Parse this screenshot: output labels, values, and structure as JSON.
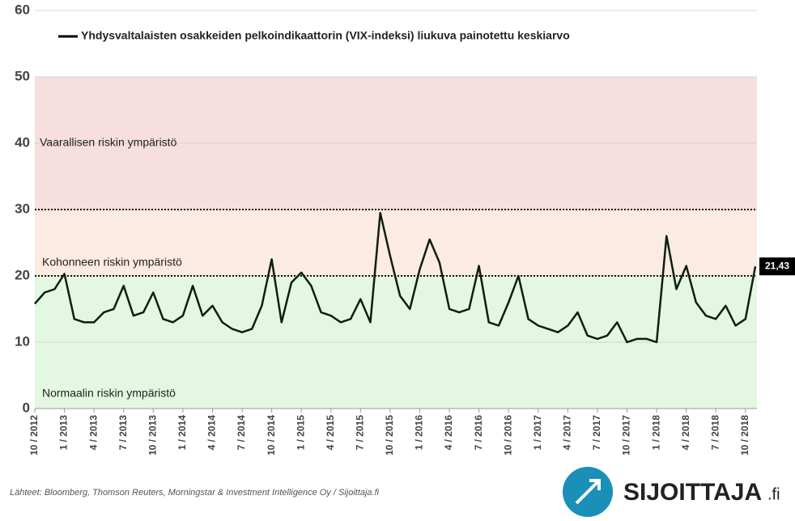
{
  "chart_data": {
    "type": "line",
    "legend": "Yhdysvaltalaisten osakkeiden pelkoindikaattorin (VIX-indeksi) liukuva painotettu keskiarvo",
    "source": "Lähteet: Bloomberg, Thomson Reuters, Morningstar & Investment Intelligence Oy / Sijoittaja.fi",
    "logo": {
      "name": "SIJOITTAJA",
      "suffix": ".fi"
    },
    "zones": [
      {
        "label": "Normaalin riskin ympäristö",
        "from": 0,
        "to": 20,
        "color": "#e3f7e1"
      },
      {
        "label": "Kohonneen riskin ympäristö",
        "from": 20,
        "to": 30,
        "color": "#fbebe3"
      },
      {
        "label": "Vaarallisen riskin ympäristö",
        "from": 30,
        "to": 50,
        "color": "#f7dfdf"
      }
    ],
    "thresholds": [
      20,
      30
    ],
    "categories": [
      "10 / 2012",
      null,
      null,
      "1 / 2013",
      null,
      null,
      "4 / 2013",
      null,
      null,
      "7 / 2013",
      null,
      null,
      "10 / 2013",
      null,
      null,
      "1 / 2014",
      null,
      null,
      "4 / 2014",
      null,
      null,
      "7 / 2014",
      null,
      null,
      "10 / 2014",
      null,
      null,
      "1 / 2015",
      null,
      null,
      "4 / 2015",
      null,
      null,
      "7 / 2015",
      null,
      null,
      "10 / 2015",
      null,
      null,
      "1 / 2016",
      null,
      null,
      "4 / 2016",
      null,
      null,
      "7 / 2016",
      null,
      null,
      "10 / 2016",
      null,
      null,
      "1 / 2017",
      null,
      null,
      "4 / 2017",
      null,
      null,
      "7 / 2017",
      null,
      null,
      "10 / 2017",
      null,
      null,
      "1 / 2018",
      null,
      null,
      "4 / 2018",
      null,
      null,
      "7 / 2018",
      null,
      null,
      "10 / 2018",
      null
    ],
    "series": [
      {
        "name": "Yhdysvaltalaisten osakkeiden pelkoindikaattorin (VIX-indeksi) liukuva painotettu keskiarvo",
        "color": "#0d1f10",
        "values": [
          15.8,
          17.5,
          18,
          20.3,
          13.5,
          13,
          13,
          14.5,
          15,
          18.5,
          14,
          14.5,
          17.5,
          13.5,
          13,
          14,
          18.5,
          14,
          15.5,
          13,
          12,
          11.5,
          12,
          15.5,
          22.5,
          13,
          19,
          20.5,
          18.5,
          14.5,
          14,
          13,
          13.5,
          16.5,
          13,
          29.5,
          23,
          17,
          15,
          21,
          25.5,
          22,
          15,
          14.5,
          15,
          21.5,
          13,
          12.5,
          16,
          20,
          13.5,
          12.5,
          12,
          11.5,
          12.5,
          14.5,
          11,
          10.5,
          11,
          13,
          10,
          10.5,
          10.5,
          10,
          26,
          18,
          21.5,
          16,
          14,
          13.5,
          15.5,
          12.5,
          13.5,
          21.43
        ]
      }
    ],
    "last_label": "21,43",
    "ylim": [
      0,
      60
    ],
    "yticks": [
      0,
      10,
      20,
      30,
      40,
      50,
      60
    ],
    "grid": true
  }
}
